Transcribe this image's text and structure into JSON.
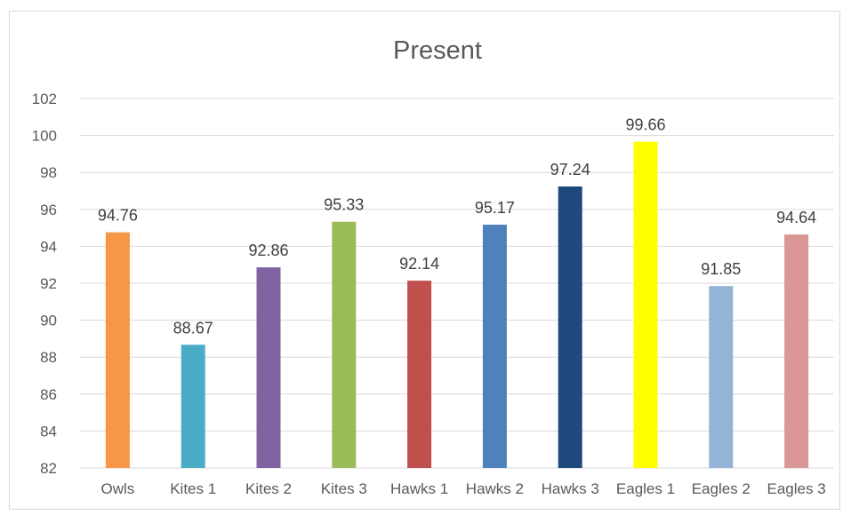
{
  "chart_data": {
    "type": "bar",
    "title": "Present",
    "xlabel": "",
    "ylabel": "",
    "ylim": [
      82,
      102
    ],
    "yticks": [
      82,
      84,
      86,
      88,
      90,
      92,
      94,
      96,
      98,
      100,
      102
    ],
    "grid": true,
    "legend": "none",
    "categories": [
      "Owls",
      "Kites 1",
      "Kites 2",
      "Kites 3",
      "Hawks 1",
      "Hawks 2",
      "Hawks 3",
      "Eagles 1",
      "Eagles 2",
      "Eagles 3"
    ],
    "values": [
      94.76,
      88.67,
      92.86,
      95.33,
      92.14,
      95.17,
      97.24,
      99.66,
      91.85,
      94.64
    ],
    "data_labels": [
      "94.76",
      "88.67",
      "92.86",
      "95.33",
      "92.14",
      "95.17",
      "97.24",
      "99.66",
      "91.85",
      "94.64"
    ],
    "colors": [
      "#f79646",
      "#4bacc6",
      "#8064a2",
      "#9bbb59",
      "#c0504d",
      "#4f81bd",
      "#1f497d",
      "#ffff00",
      "#95b3d7",
      "#d99694"
    ]
  }
}
